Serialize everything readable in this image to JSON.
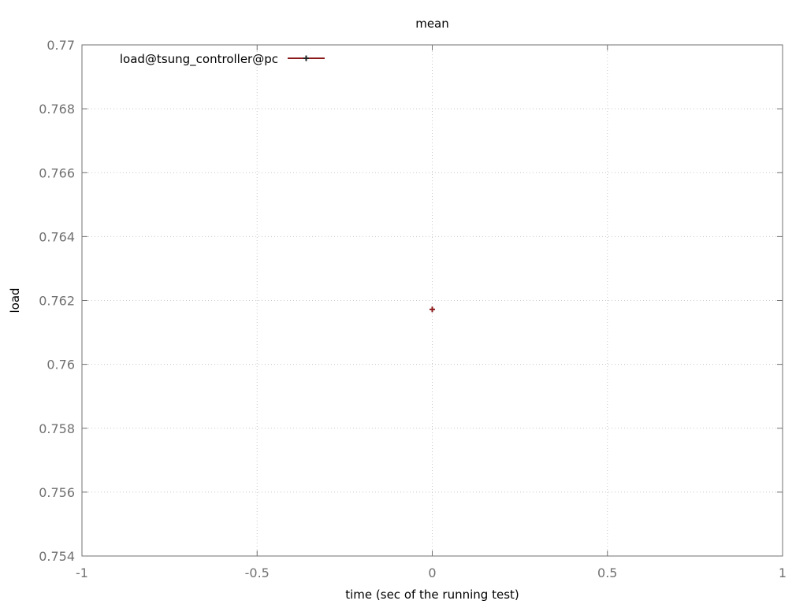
{
  "chart_data": {
    "type": "scatter",
    "title": "mean",
    "xlabel": "time (sec of the running test)",
    "ylabel": "load",
    "xlim": [
      -1,
      1
    ],
    "ylim": [
      0.754,
      0.77
    ],
    "x_ticks": [
      "-1",
      "-0.5",
      "0",
      "0.5",
      "1"
    ],
    "y_ticks": [
      "0.754",
      "0.756",
      "0.758",
      "0.76",
      "0.762",
      "0.764",
      "0.766",
      "0.768",
      "0.77"
    ],
    "grid": true,
    "legend_position": "top-left",
    "series": [
      {
        "name": "load@tsung_controller@pc",
        "color": "#8b1a1a",
        "marker": "plus",
        "points": [
          {
            "x": 0,
            "y": 0.76172
          }
        ]
      }
    ]
  }
}
